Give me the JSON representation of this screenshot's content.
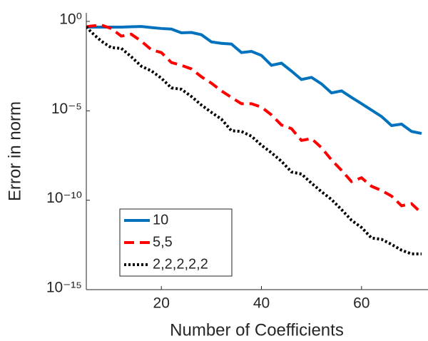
{
  "chart_data": {
    "type": "line",
    "x_label": "Number of Coefficients",
    "y_label": "Error in norm",
    "x": [
      5,
      6,
      8,
      10,
      12,
      14,
      16,
      18,
      20,
      22,
      24,
      26,
      28,
      30,
      32,
      34,
      36,
      38,
      40,
      42,
      44,
      46,
      48,
      50,
      52,
      54,
      56,
      58,
      60,
      62,
      64,
      66,
      68,
      70,
      72
    ],
    "series": [
      {
        "name": "10",
        "color": "#0072bd",
        "dash": "solid",
        "values": [
          0.48,
          0.48,
          0.48,
          0.48,
          0.48,
          0.5,
          0.52,
          0.45,
          0.4,
          0.37,
          0.23,
          0.24,
          0.18,
          0.071,
          0.059,
          0.054,
          0.018,
          0.021,
          0.0125,
          0.0035,
          0.0046,
          0.00166,
          0.00056,
          0.00074,
          0.00032,
          0.0001,
          0.00013,
          5.6e-05,
          2.5e-05,
          1.1e-05,
          4.8e-06,
          1.5e-06,
          1.8e-06,
          7e-07,
          5.4e-07
        ]
      },
      {
        "name": "5,5",
        "color": "#ff0000",
        "dash": "dashed",
        "values": [
          0.5,
          0.55,
          0.62,
          0.4,
          0.15,
          0.19,
          0.078,
          0.026,
          0.018,
          0.005,
          0.0035,
          0.0022,
          0.0008,
          0.00035,
          0.00013,
          5.6e-05,
          2.5e-05,
          2.5e-05,
          1.6e-05,
          5.9e-06,
          1.6e-06,
          1e-06,
          2.2e-07,
          2.8e-07,
          8.6e-08,
          1.8e-08,
          4.7e-09,
          1.1e-09,
          1.8e-09,
          6e-10,
          3.5e-10,
          1.7e-10,
          4.9e-11,
          6.4e-11,
          1.9e-11
        ]
      },
      {
        "name": "2,2,2,2,2",
        "color": "#000000",
        "dash": "dotted",
        "values": [
          0.5,
          0.25,
          0.078,
          0.034,
          0.031,
          0.0104,
          0.0031,
          0.0017,
          0.00067,
          0.00019,
          0.00016,
          6.3e-05,
          2.1e-05,
          8.2e-06,
          3.4e-06,
          7.7e-07,
          7e-07,
          3.8e-07,
          1.2e-07,
          4.5e-08,
          1.5e-08,
          3.8e-09,
          2.9e-09,
          9e-10,
          3e-10,
          1.1e-10,
          3e-11,
          7.6e-12,
          3e-12,
          7.7e-13,
          6.5e-13,
          3.4e-13,
          1.6e-13,
          1e-13,
          1e-13
        ]
      }
    ],
    "xlim": [
      5,
      73
    ],
    "xticks": [
      20,
      40,
      60
    ],
    "ylim": [
      1e-15,
      3
    ],
    "yscale": "log",
    "yticks": [
      {
        "value": 1,
        "label": "10⁰"
      },
      {
        "value": 1e-05,
        "label": "10⁻⁵"
      },
      {
        "value": 1e-10,
        "label": "10⁻¹⁰"
      },
      {
        "value": 1e-15,
        "label": "10⁻¹⁵"
      }
    ],
    "grid": false,
    "legend": "lower left"
  }
}
